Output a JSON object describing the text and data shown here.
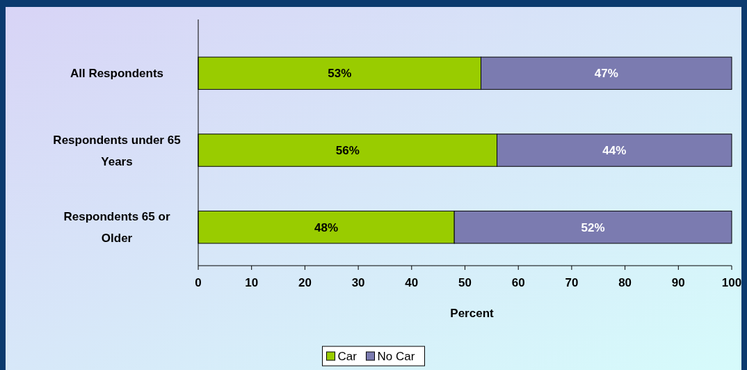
{
  "chart_data": {
    "type": "bar",
    "orientation": "horizontal",
    "stacked": true,
    "xlabel": "Percent",
    "categories": [
      "All Respondents",
      "Respondents under 65 Years",
      "Respondents 65 or Older"
    ],
    "series": [
      {
        "name": "Car",
        "color": "#99cc00",
        "values": [
          53,
          56,
          48
        ],
        "value_labels": [
          "53%",
          "56%",
          "48%"
        ]
      },
      {
        "name": "No Car",
        "color": "#7b7bb0",
        "values": [
          47,
          44,
          52
        ],
        "value_labels": [
          "47%",
          "44%",
          "52%"
        ]
      }
    ],
    "xlim": [
      0,
      100
    ],
    "xticks": [
      0,
      10,
      20,
      30,
      40,
      50,
      60,
      70,
      80,
      90,
      100
    ],
    "grid": false,
    "legend": "bottom"
  }
}
